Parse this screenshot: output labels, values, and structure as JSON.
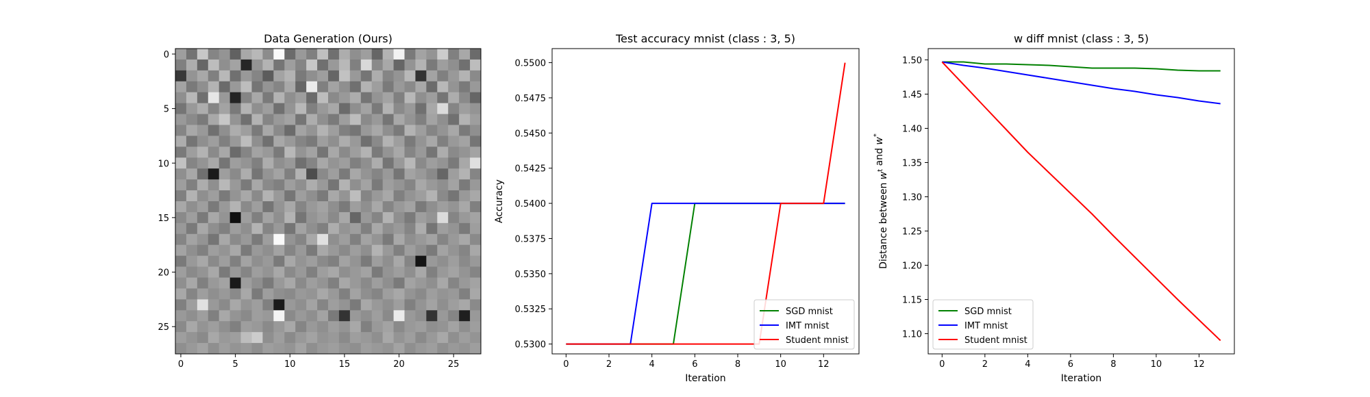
{
  "chart_data": [
    {
      "type": "heatmap",
      "title": "Data Generation (Ours)",
      "colormap": "gray",
      "rows": 28,
      "cols": 28,
      "xticks": [
        0,
        5,
        10,
        15,
        20,
        25
      ],
      "yticks": [
        0,
        5,
        10,
        15,
        20,
        25
      ],
      "values": [
        [
          0.62,
          0.45,
          0.78,
          0.52,
          0.58,
          0.38,
          0.66,
          0.72,
          0.55,
          0.98,
          0.42,
          0.6,
          0.5,
          0.75,
          0.44,
          0.68,
          0.56,
          0.62,
          0.4,
          0.7,
          0.95,
          0.48,
          0.64,
          0.58,
          0.8,
          0.5,
          0.66,
          0.42
        ],
        [
          0.5,
          0.68,
          0.4,
          0.74,
          0.56,
          0.64,
          0.15,
          0.58,
          0.7,
          0.46,
          0.62,
          0.52,
          0.78,
          0.44,
          0.6,
          0.72,
          0.5,
          0.85,
          0.54,
          0.66,
          0.4,
          0.58,
          0.7,
          0.48,
          0.62,
          0.56,
          0.44,
          0.74
        ],
        [
          0.22,
          0.58,
          0.66,
          0.5,
          0.72,
          0.44,
          0.6,
          0.52,
          0.36,
          0.64,
          0.7,
          0.48,
          0.56,
          0.62,
          0.4,
          0.76,
          0.6,
          0.46,
          0.68,
          0.52,
          0.58,
          0.72,
          0.2,
          0.64,
          0.5,
          0.6,
          0.7,
          0.54
        ],
        [
          0.64,
          0.48,
          0.56,
          0.7,
          0.42,
          0.6,
          0.74,
          0.46,
          0.58,
          0.52,
          0.66,
          0.4,
          0.92,
          0.5,
          0.64,
          0.56,
          0.44,
          0.7,
          0.62,
          0.48,
          0.6,
          0.54,
          0.66,
          0.42,
          0.72,
          0.58,
          0.48,
          0.6
        ],
        [
          0.56,
          0.72,
          0.44,
          0.9,
          0.6,
          0.14,
          0.52,
          0.66,
          0.48,
          0.7,
          0.56,
          0.62,
          0.42,
          0.74,
          0.54,
          0.6,
          0.68,
          0.46,
          0.58,
          0.64,
          0.5,
          0.72,
          0.56,
          0.62,
          0.46,
          0.68,
          0.54,
          0.4
        ],
        [
          0.46,
          0.6,
          0.68,
          0.52,
          0.64,
          0.48,
          0.7,
          0.56,
          0.62,
          0.44,
          0.58,
          0.72,
          0.5,
          0.6,
          0.66,
          0.42,
          0.56,
          0.64,
          0.48,
          0.7,
          0.54,
          0.6,
          0.44,
          0.66,
          0.86,
          0.52,
          0.62,
          0.58
        ],
        [
          0.6,
          0.54,
          0.48,
          0.66,
          0.78,
          0.58,
          0.44,
          0.7,
          0.52,
          0.6,
          0.64,
          0.46,
          0.68,
          0.56,
          0.48,
          0.62,
          0.74,
          0.54,
          0.6,
          0.46,
          0.66,
          0.58,
          0.5,
          0.64,
          0.56,
          0.44,
          0.7,
          0.62
        ],
        [
          0.52,
          0.66,
          0.6,
          0.44,
          0.56,
          0.68,
          0.62,
          0.48,
          0.66,
          0.54,
          0.42,
          0.64,
          0.58,
          0.7,
          0.62,
          0.5,
          0.46,
          0.6,
          0.66,
          0.56,
          0.48,
          0.7,
          0.62,
          0.52,
          0.58,
          0.66,
          0.48,
          0.56
        ],
        [
          0.68,
          0.46,
          0.56,
          0.62,
          0.5,
          0.6,
          0.74,
          0.56,
          0.44,
          0.66,
          0.6,
          0.52,
          0.48,
          0.62,
          0.56,
          0.68,
          0.6,
          0.44,
          0.54,
          0.7,
          0.62,
          0.48,
          0.58,
          0.66,
          0.5,
          0.6,
          0.64,
          0.46
        ],
        [
          0.48,
          0.62,
          0.7,
          0.54,
          0.66,
          0.42,
          0.52,
          0.64,
          0.6,
          0.48,
          0.72,
          0.58,
          0.64,
          0.46,
          0.66,
          0.54,
          0.62,
          0.7,
          0.48,
          0.58,
          0.66,
          0.52,
          0.6,
          0.46,
          0.68,
          0.54,
          0.58,
          0.64
        ],
        [
          0.76,
          0.52,
          0.58,
          0.66,
          0.46,
          0.62,
          0.58,
          0.5,
          0.68,
          0.56,
          0.6,
          0.44,
          0.52,
          0.66,
          0.58,
          0.62,
          0.5,
          0.56,
          0.68,
          0.46,
          0.6,
          0.72,
          0.54,
          0.62,
          0.58,
          0.48,
          0.66,
          0.88
        ],
        [
          0.56,
          0.66,
          0.44,
          0.1,
          0.62,
          0.54,
          0.68,
          0.46,
          0.58,
          0.64,
          0.5,
          0.7,
          0.3,
          0.54,
          0.62,
          0.48,
          0.66,
          0.58,
          0.52,
          0.6,
          0.46,
          0.64,
          0.6,
          0.54,
          0.4,
          0.62,
          0.7,
          0.52
        ],
        [
          0.62,
          0.5,
          0.68,
          0.56,
          0.72,
          0.6,
          0.48,
          0.66,
          0.54,
          0.5,
          0.62,
          0.56,
          0.68,
          0.6,
          0.46,
          0.7,
          0.56,
          0.64,
          0.48,
          0.62,
          0.58,
          0.52,
          0.66,
          0.6,
          0.56,
          0.64,
          0.48,
          0.6
        ],
        [
          0.5,
          0.7,
          0.56,
          0.62,
          0.48,
          0.58,
          0.66,
          0.54,
          0.7,
          0.6,
          0.46,
          0.62,
          0.56,
          0.48,
          0.66,
          0.58,
          0.74,
          0.52,
          0.6,
          0.66,
          0.5,
          0.58,
          0.62,
          0.7,
          0.54,
          0.46,
          0.6,
          0.66
        ],
        [
          0.66,
          0.56,
          0.62,
          0.48,
          0.6,
          0.7,
          0.54,
          0.62,
          0.46,
          0.58,
          0.66,
          0.52,
          0.6,
          0.64,
          0.56,
          0.48,
          0.62,
          0.56,
          0.66,
          0.52,
          0.6,
          0.64,
          0.48,
          0.56,
          0.62,
          0.58,
          0.66,
          0.5
        ],
        [
          0.54,
          0.62,
          0.48,
          0.66,
          0.58,
          0.06,
          0.62,
          0.5,
          0.64,
          0.56,
          0.7,
          0.46,
          0.58,
          0.62,
          0.54,
          0.66,
          0.4,
          0.6,
          0.52,
          0.7,
          0.56,
          0.48,
          0.62,
          0.58,
          0.86,
          0.52,
          0.6,
          0.64
        ],
        [
          0.6,
          0.48,
          0.66,
          0.56,
          0.5,
          0.62,
          0.56,
          0.7,
          0.52,
          0.6,
          0.46,
          0.64,
          0.56,
          0.5,
          0.68,
          0.58,
          0.62,
          0.5,
          0.66,
          0.56,
          0.6,
          0.52,
          0.68,
          0.46,
          0.62,
          0.58,
          0.48,
          0.62
        ],
        [
          0.52,
          0.64,
          0.58,
          0.46,
          0.66,
          0.54,
          0.6,
          0.48,
          0.62,
          0.98,
          0.58,
          0.52,
          0.66,
          0.88,
          0.56,
          0.62,
          0.5,
          0.64,
          0.58,
          0.48,
          0.66,
          0.56,
          0.6,
          0.64,
          0.52,
          0.6,
          0.66,
          0.54
        ],
        [
          0.64,
          0.56,
          0.5,
          0.62,
          0.58,
          0.66,
          0.48,
          0.6,
          0.56,
          0.64,
          0.52,
          0.6,
          0.48,
          0.66,
          0.6,
          0.54,
          0.62,
          0.56,
          0.7,
          0.6,
          0.5,
          0.62,
          0.56,
          0.48,
          0.64,
          0.58,
          0.52,
          0.66
        ],
        [
          0.48,
          0.6,
          0.66,
          0.54,
          0.62,
          0.5,
          0.64,
          0.56,
          0.6,
          0.48,
          0.66,
          0.58,
          0.62,
          0.54,
          0.5,
          0.64,
          0.58,
          0.48,
          0.62,
          0.56,
          0.66,
          0.52,
          0.08,
          0.6,
          0.56,
          0.62,
          0.54,
          0.6
        ],
        [
          0.62,
          0.54,
          0.58,
          0.66,
          0.48,
          0.6,
          0.52,
          0.62,
          0.58,
          0.66,
          0.54,
          0.6,
          0.5,
          0.62,
          0.66,
          0.56,
          0.6,
          0.64,
          0.48,
          0.58,
          0.62,
          0.56,
          0.66,
          0.5,
          0.6,
          0.64,
          0.58,
          0.52
        ],
        [
          0.56,
          0.66,
          0.5,
          0.6,
          0.64,
          0.1,
          0.62,
          0.56,
          0.48,
          0.6,
          0.66,
          0.54,
          0.62,
          0.58,
          0.5,
          0.66,
          0.6,
          0.54,
          0.62,
          0.56,
          0.48,
          0.64,
          0.6,
          0.56,
          0.66,
          0.52,
          0.6,
          0.64
        ],
        [
          0.66,
          0.52,
          0.62,
          0.56,
          0.6,
          0.54,
          0.66,
          0.48,
          0.62,
          0.56,
          0.54,
          0.6,
          0.58,
          0.66,
          0.6,
          0.5,
          0.64,
          0.56,
          0.52,
          0.62,
          0.66,
          0.58,
          0.54,
          0.62,
          0.58,
          0.6,
          0.5,
          0.66
        ],
        [
          0.5,
          0.62,
          0.88,
          0.6,
          0.54,
          0.66,
          0.58,
          0.62,
          0.5,
          0.1,
          0.6,
          0.56,
          0.64,
          0.52,
          0.62,
          0.58,
          0.48,
          0.66,
          0.6,
          0.56,
          0.62,
          0.5,
          0.58,
          0.64,
          0.56,
          0.62,
          0.66,
          0.54
        ],
        [
          0.6,
          0.56,
          0.62,
          0.5,
          0.66,
          0.58,
          0.54,
          0.62,
          0.6,
          0.96,
          0.54,
          0.6,
          0.56,
          0.64,
          0.48,
          0.2,
          0.6,
          0.56,
          0.62,
          0.54,
          0.92,
          0.6,
          0.56,
          0.2,
          0.6,
          0.52,
          0.12,
          0.6
        ],
        [
          0.54,
          0.66,
          0.58,
          0.62,
          0.56,
          0.5,
          0.62,
          0.6,
          0.54,
          0.6,
          0.66,
          0.52,
          0.6,
          0.56,
          0.62,
          0.58,
          0.66,
          0.5,
          0.6,
          0.64,
          0.54,
          0.6,
          0.62,
          0.56,
          0.58,
          0.64,
          0.56,
          0.62
        ],
        [
          0.62,
          0.58,
          0.54,
          0.66,
          0.6,
          0.62,
          0.74,
          0.8,
          0.56,
          0.62,
          0.54,
          0.6,
          0.64,
          0.58,
          0.6,
          0.54,
          0.62,
          0.6,
          0.56,
          0.66,
          0.58,
          0.62,
          0.54,
          0.6,
          0.66,
          0.56,
          0.62,
          0.58
        ],
        [
          0.56,
          0.6,
          0.64,
          0.56,
          0.62,
          0.58,
          0.6,
          0.56,
          0.62,
          0.6,
          0.58,
          0.64,
          0.56,
          0.6,
          0.62,
          0.58,
          0.56,
          0.62,
          0.6,
          0.58,
          0.64,
          0.56,
          0.6,
          0.62,
          0.56,
          0.6,
          0.58,
          0.62
        ]
      ]
    },
    {
      "type": "line",
      "title": "Test accuracy mnist (class : 3, 5)",
      "xlabel": "Iteration",
      "ylabel": "Accuracy",
      "xlim": [
        -0.65,
        13.65
      ],
      "ylim": [
        0.5293,
        0.551
      ],
      "xticks": [
        0,
        2,
        4,
        6,
        8,
        10,
        12
      ],
      "yticks": [
        "0.5300",
        "0.5325",
        "0.5350",
        "0.5375",
        "0.5400",
        "0.5425",
        "0.5450",
        "0.5475",
        "0.5500"
      ],
      "legend": "lower right",
      "series": [
        {
          "name": "SGD mnist",
          "color": "#008000",
          "x": [
            0,
            1,
            2,
            3,
            4,
            5,
            6,
            7,
            8,
            9,
            10,
            11,
            12,
            13
          ],
          "y": [
            0.53,
            0.53,
            0.53,
            0.53,
            0.53,
            0.53,
            0.54,
            0.54,
            0.54,
            0.54,
            0.54,
            0.54,
            0.54,
            0.54
          ]
        },
        {
          "name": "IMT mnist",
          "color": "#0000ff",
          "x": [
            0,
            1,
            2,
            3,
            4,
            5,
            6,
            7,
            8,
            9,
            10,
            11,
            12,
            13
          ],
          "y": [
            0.53,
            0.53,
            0.53,
            0.53,
            0.54,
            0.54,
            0.54,
            0.54,
            0.54,
            0.54,
            0.54,
            0.54,
            0.54,
            0.54
          ]
        },
        {
          "name": "Student mnist",
          "color": "#ff0000",
          "x": [
            0,
            1,
            2,
            3,
            4,
            5,
            6,
            7,
            8,
            9,
            10,
            11,
            12,
            13
          ],
          "y": [
            0.53,
            0.53,
            0.53,
            0.53,
            0.53,
            0.53,
            0.53,
            0.53,
            0.53,
            0.53,
            0.54,
            0.54,
            0.54,
            0.55
          ]
        }
      ]
    },
    {
      "type": "line",
      "title": "w diff mnist (class : 3, 5)",
      "xlabel": "Iteration",
      "ylabel": "Distance between w^t and w^*",
      "xlim": [
        -0.65,
        13.65
      ],
      "ylim": [
        1.0705,
        1.5165
      ],
      "xticks": [
        0,
        2,
        4,
        6,
        8,
        10,
        12
      ],
      "yticks": [
        "1.10",
        "1.15",
        "1.20",
        "1.25",
        "1.30",
        "1.35",
        "1.40",
        "1.45",
        "1.50"
      ],
      "legend": "lower left",
      "series": [
        {
          "name": "SGD mnist",
          "color": "#008000",
          "x": [
            0,
            1,
            2,
            3,
            4,
            5,
            6,
            7,
            8,
            9,
            10,
            11,
            12,
            13
          ],
          "y": [
            1.497,
            1.497,
            1.494,
            1.494,
            1.493,
            1.492,
            1.49,
            1.488,
            1.488,
            1.488,
            1.487,
            1.485,
            1.484,
            1.484
          ]
        },
        {
          "name": "IMT mnist",
          "color": "#0000ff",
          "x": [
            0,
            1,
            2,
            3,
            4,
            5,
            6,
            7,
            8,
            9,
            10,
            11,
            12,
            13
          ],
          "y": [
            1.497,
            1.492,
            1.488,
            1.483,
            1.478,
            1.473,
            1.468,
            1.463,
            1.458,
            1.454,
            1.449,
            1.445,
            1.44,
            1.436
          ]
        },
        {
          "name": "Student mnist",
          "color": "#ff0000",
          "x": [
            0,
            1,
            2,
            3,
            4,
            5,
            6,
            7,
            8,
            9,
            10,
            11,
            12,
            13
          ],
          "y": [
            1.497,
            1.464,
            1.431,
            1.398,
            1.365,
            1.335,
            1.305,
            1.275,
            1.243,
            1.212,
            1.181,
            1.15,
            1.12,
            1.09
          ]
        }
      ]
    }
  ]
}
